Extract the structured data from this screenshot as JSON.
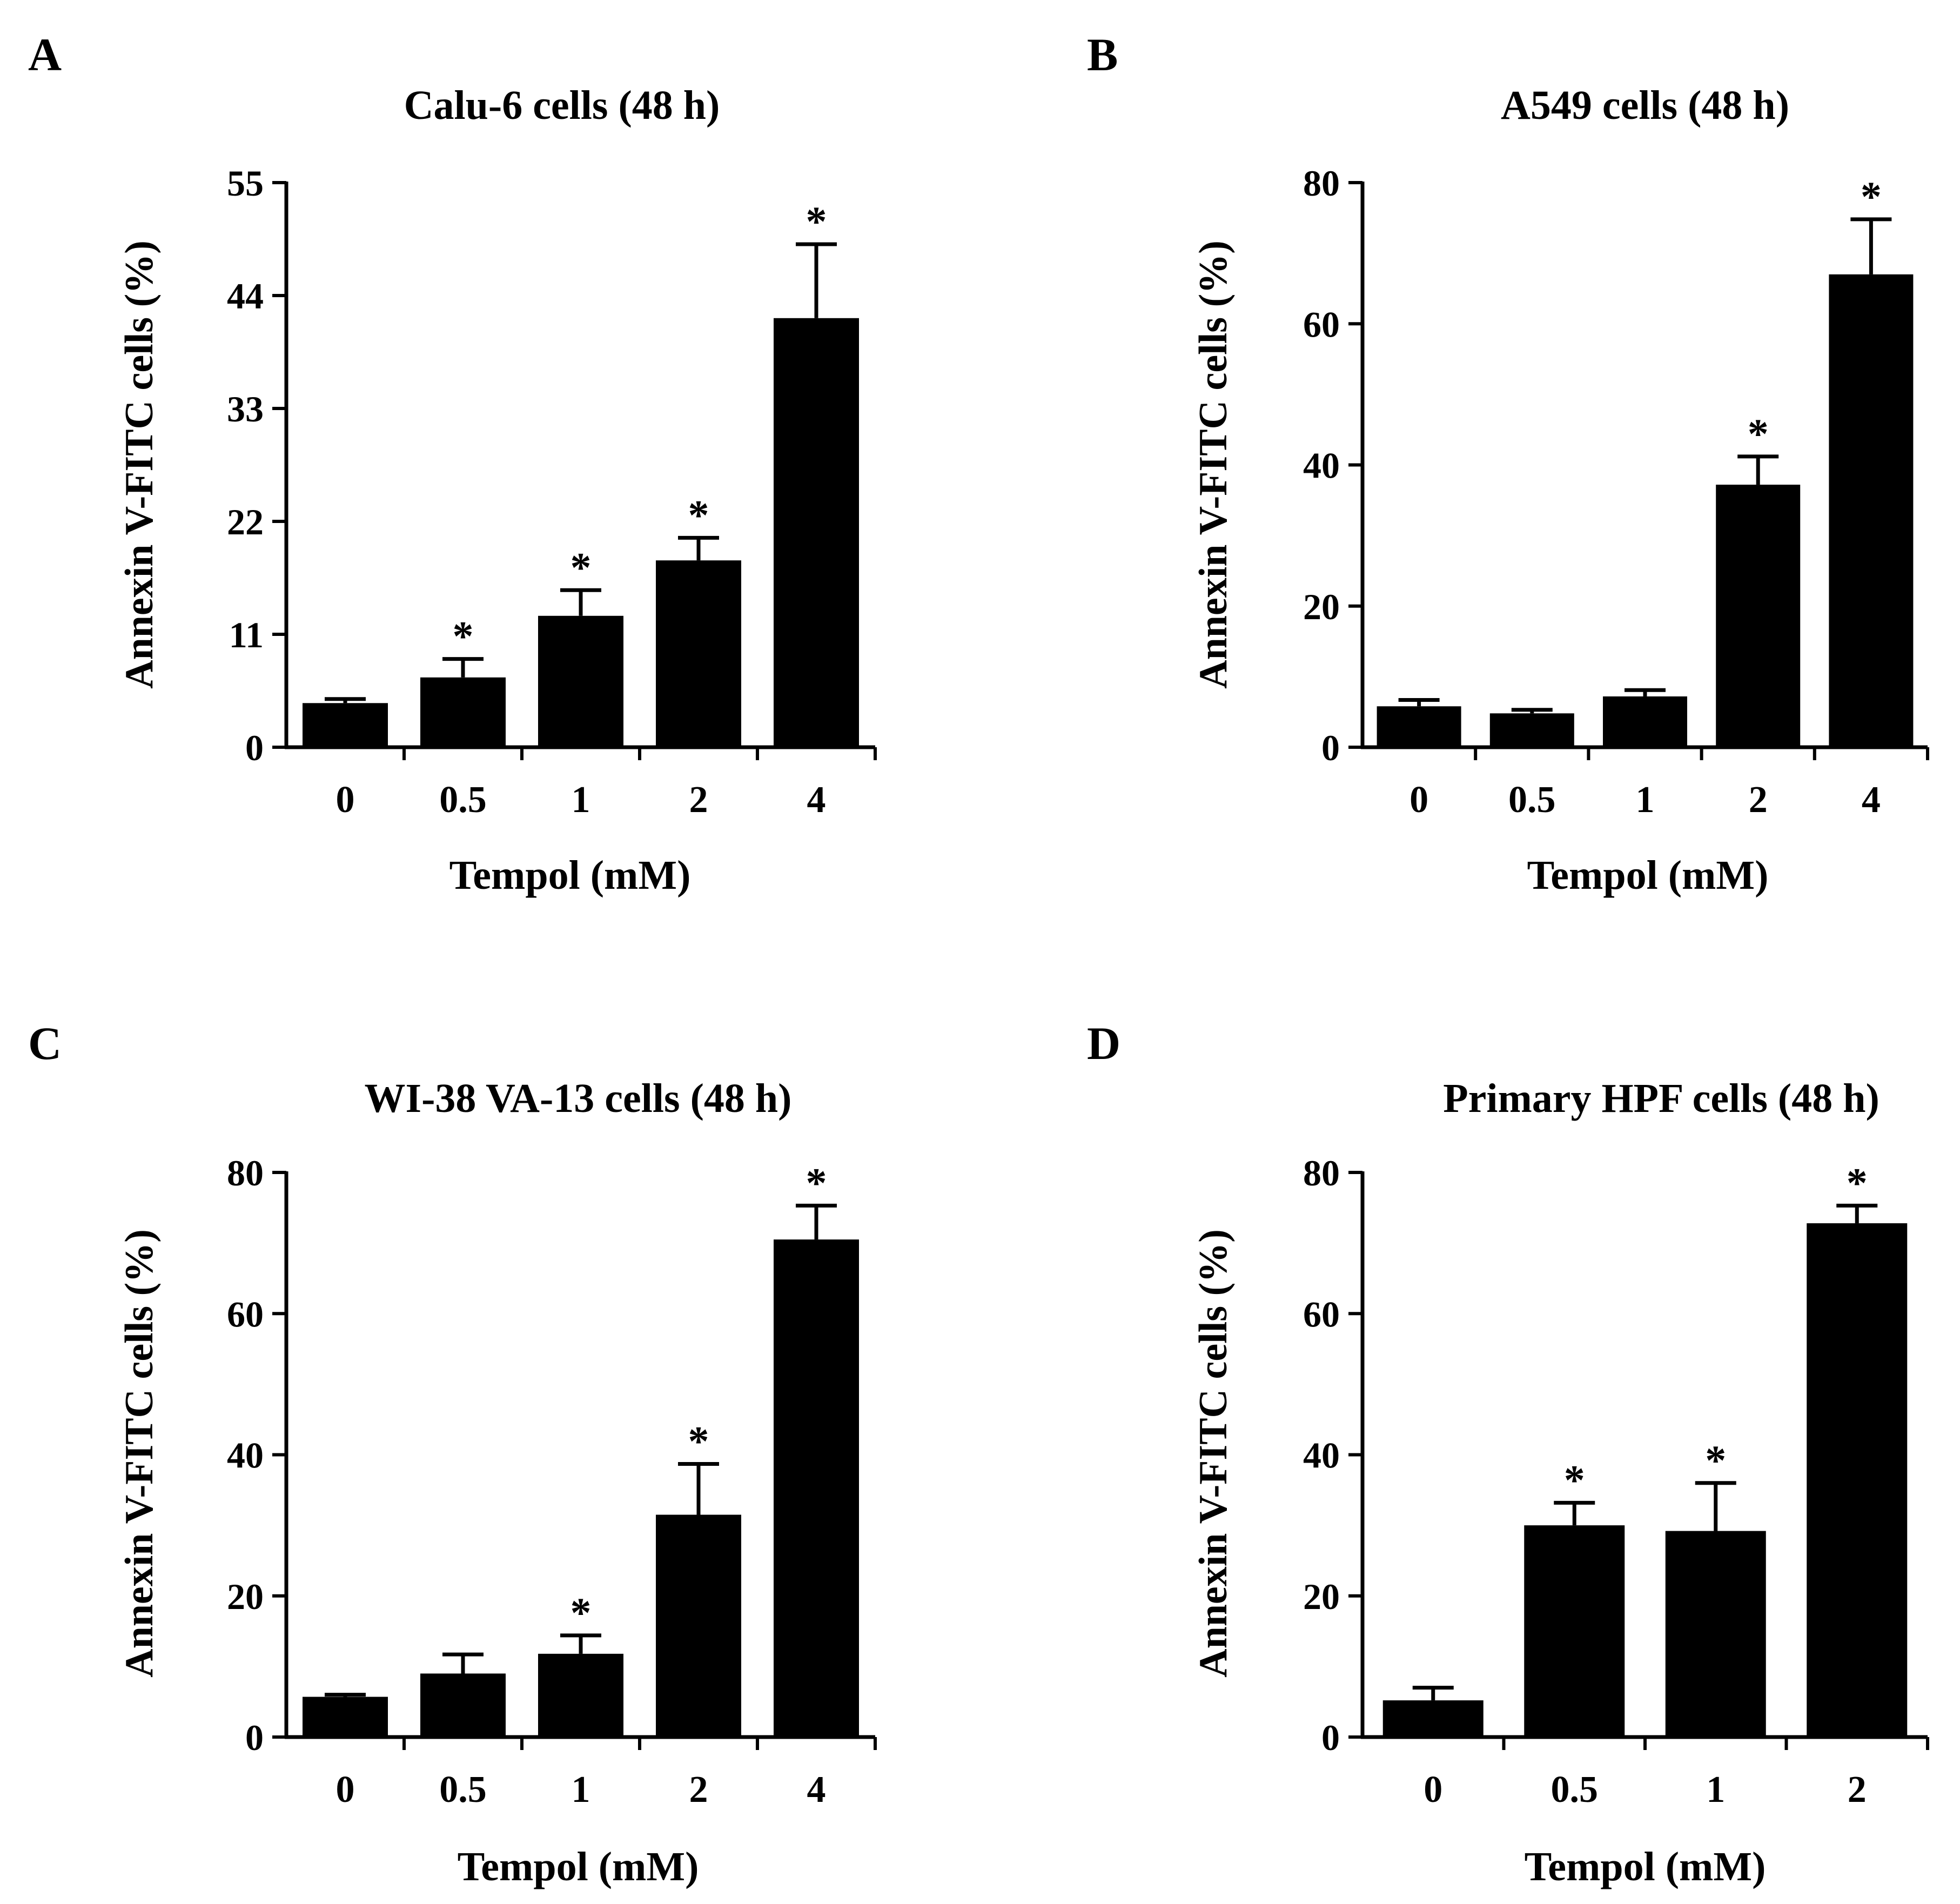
{
  "figure": {
    "background": "#ffffff",
    "bar_color": "#000000",
    "star_color": "#555555"
  },
  "chart_data": [
    {
      "panel_label": "A",
      "type": "bar",
      "title": "Calu-6 cells (48 h)",
      "xlabel": "Tempol (mM)",
      "ylabel": "Annexin V-FITC  cells (%)",
      "categories": [
        "0",
        "0.5",
        "1",
        "2",
        "4"
      ],
      "values": [
        4.3,
        6.8,
        12.8,
        18.2,
        41.8
      ],
      "errors": [
        0.4,
        1.8,
        2.5,
        2.2,
        7.2
      ],
      "significant": [
        false,
        true,
        true,
        true,
        true
      ],
      "ylim": [
        0,
        55
      ],
      "yticks": [
        "0",
        "11",
        "22",
        "33",
        "44",
        "55"
      ],
      "significance_marker": "*"
    },
    {
      "panel_label": "B",
      "type": "bar",
      "title": "A549 cells (48 h)",
      "xlabel": "Tempol (mM)",
      "ylabel": "Annexin V-FITC cells (%)",
      "categories": [
        "0",
        "0.5",
        "1",
        "2",
        "4"
      ],
      "values": [
        5.8,
        4.8,
        7.2,
        37.2,
        67.0
      ],
      "errors": [
        0.9,
        0.5,
        0.9,
        4.0,
        7.8
      ],
      "significant": [
        false,
        false,
        false,
        true,
        true
      ],
      "ylim": [
        0,
        80
      ],
      "yticks": [
        "0",
        "20",
        "40",
        "60",
        "80"
      ],
      "significance_marker": "*"
    },
    {
      "panel_label": "C",
      "type": "bar",
      "title": "WI-38 VA-13 cells (48 h)",
      "xlabel": "Tempol (mM)",
      "ylabel": "Annexin V-FITC cells (%)",
      "categories": [
        "0",
        "0.5",
        "1",
        "2",
        "4"
      ],
      "values": [
        5.7,
        9.0,
        11.8,
        31.5,
        70.5
      ],
      "errors": [
        0.3,
        2.7,
        2.6,
        7.2,
        4.8
      ],
      "significant": [
        false,
        false,
        true,
        true,
        true
      ],
      "ylim": [
        0,
        80
      ],
      "yticks": [
        "0",
        "20",
        "40",
        "60",
        "80"
      ],
      "significance_marker": "*"
    },
    {
      "panel_label": "D",
      "type": "bar",
      "title": "Primary HPF cells (48 h)",
      "xlabel": "Tempol (mM)",
      "ylabel": "Annexin V-FITC cells (%)",
      "categories": [
        "0",
        "0.5",
        "1",
        "2"
      ],
      "values": [
        5.2,
        30.0,
        29.2,
        72.8
      ],
      "errors": [
        1.8,
        3.2,
        6.8,
        2.5
      ],
      "significant": [
        false,
        true,
        true,
        true
      ],
      "ylim": [
        0,
        80
      ],
      "yticks": [
        "0",
        "20",
        "40",
        "60",
        "80"
      ],
      "significance_marker": "*"
    }
  ]
}
